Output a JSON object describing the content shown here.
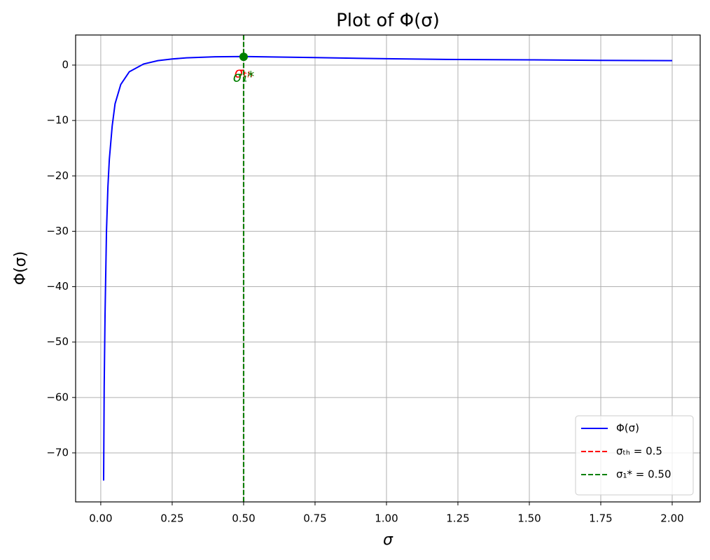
{
  "chart_data": {
    "type": "line",
    "title": "Plot of Φ(σ)",
    "xlabel": "σ",
    "ylabel": "Φ(σ)",
    "series": [
      {
        "name": "Φ(σ)",
        "color": "#0000ff",
        "x": [
          0.01,
          0.012,
          0.015,
          0.02,
          0.025,
          0.03,
          0.04,
          0.05,
          0.07,
          0.1,
          0.15,
          0.2,
          0.25,
          0.3,
          0.4,
          0.5,
          0.75,
          1.0,
          1.25,
          1.5,
          1.75,
          2.0
        ],
        "values": [
          -75,
          -58,
          -45,
          -30,
          -22,
          -17,
          -11,
          -7,
          -3.5,
          -1.2,
          0.2,
          0.8,
          1.1,
          1.3,
          1.5,
          1.55,
          1.35,
          1.15,
          1.0,
          0.95,
          0.85,
          0.8
        ]
      }
    ],
    "vlines": [
      {
        "name": "σₜₕ = 0.5",
        "color": "#ff0000",
        "x": 0.5
      },
      {
        "name": "σ₁* = 0.50",
        "color": "#008000",
        "x": 0.5
      }
    ],
    "point": {
      "x": 0.5,
      "y": 1.5,
      "color": "#008000"
    },
    "annotations": [
      {
        "text": "σₜₕ",
        "color": "#ff0000"
      },
      {
        "text": "σ₁*",
        "color": "#008000"
      }
    ],
    "xlim": [
      -0.088,
      2.098
    ],
    "ylim": [
      -78.85,
      5.43
    ],
    "xticks": [
      {
        "value": 0,
        "label": "0.00"
      },
      {
        "value": 0.25,
        "label": "0.25"
      },
      {
        "value": 0.5,
        "label": "0.50"
      },
      {
        "value": 0.75,
        "label": "0.75"
      },
      {
        "value": 1,
        "label": "1.00"
      },
      {
        "value": 1.25,
        "label": "1.25"
      },
      {
        "value": 1.5,
        "label": "1.50"
      },
      {
        "value": 1.75,
        "label": "1.75"
      },
      {
        "value": 2,
        "label": "2.00"
      }
    ],
    "yticks": [
      0,
      {
        "value": -10,
        "label": "−10"
      },
      {
        "value": -20,
        "label": "−20"
      },
      {
        "value": -30,
        "label": "−30"
      },
      {
        "value": -40,
        "label": "−40"
      },
      {
        "value": -50,
        "label": "−50"
      },
      {
        "value": -60,
        "label": "−60"
      },
      {
        "value": -70,
        "label": "−70"
      }
    ],
    "grid": true,
    "legend": "lower right"
  }
}
